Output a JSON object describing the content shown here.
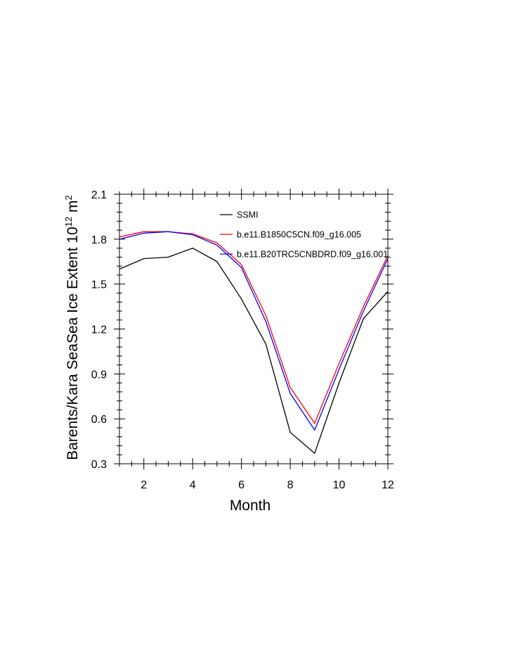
{
  "chart_data": {
    "type": "line",
    "title": "",
    "xlabel": "Month",
    "ylabel": {
      "prefix": "Barents/Kara SeaSea Ice Extent 10",
      "exponent": "12",
      "unit": " m",
      "unit_exponent": "2"
    },
    "xlim": [
      1,
      12
    ],
    "ylim": [
      0.3,
      2.1
    ],
    "x_ticks": [
      2,
      4,
      6,
      8,
      10,
      12
    ],
    "x_tick_labels": [
      "2",
      "4",
      "6",
      "8",
      "10",
      "12"
    ],
    "y_ticks": [
      0.3,
      0.6,
      0.9,
      1.2,
      1.5,
      1.8,
      2.1
    ],
    "y_tick_labels": [
      "0.3",
      "0.6",
      "0.9",
      "1.2",
      "1.5",
      "1.8",
      "2.1"
    ],
    "grid": false,
    "legend_position": "top-center",
    "x": [
      1,
      2,
      3,
      4,
      5,
      6,
      7,
      8,
      9,
      10,
      11,
      12
    ],
    "series": [
      {
        "name": "SSMI",
        "color": "#000000",
        "values": [
          1.6,
          1.67,
          1.68,
          1.74,
          1.65,
          1.4,
          1.1,
          0.51,
          0.37,
          0.84,
          1.27,
          1.45
        ]
      },
      {
        "name": "b.e11.B1850C5CN.f09_g16.005",
        "color": "#ff0000",
        "values": [
          1.815,
          1.85,
          1.85,
          1.835,
          1.775,
          1.63,
          1.29,
          0.81,
          0.57,
          0.97,
          1.35,
          1.69
        ]
      },
      {
        "name": "b.e11.B20TRC5CNBDRD.f09_g16.001",
        "color": "#0000ff",
        "values": [
          1.8,
          1.84,
          1.85,
          1.83,
          1.76,
          1.61,
          1.25,
          0.77,
          0.525,
          0.93,
          1.32,
          1.67
        ]
      }
    ]
  }
}
